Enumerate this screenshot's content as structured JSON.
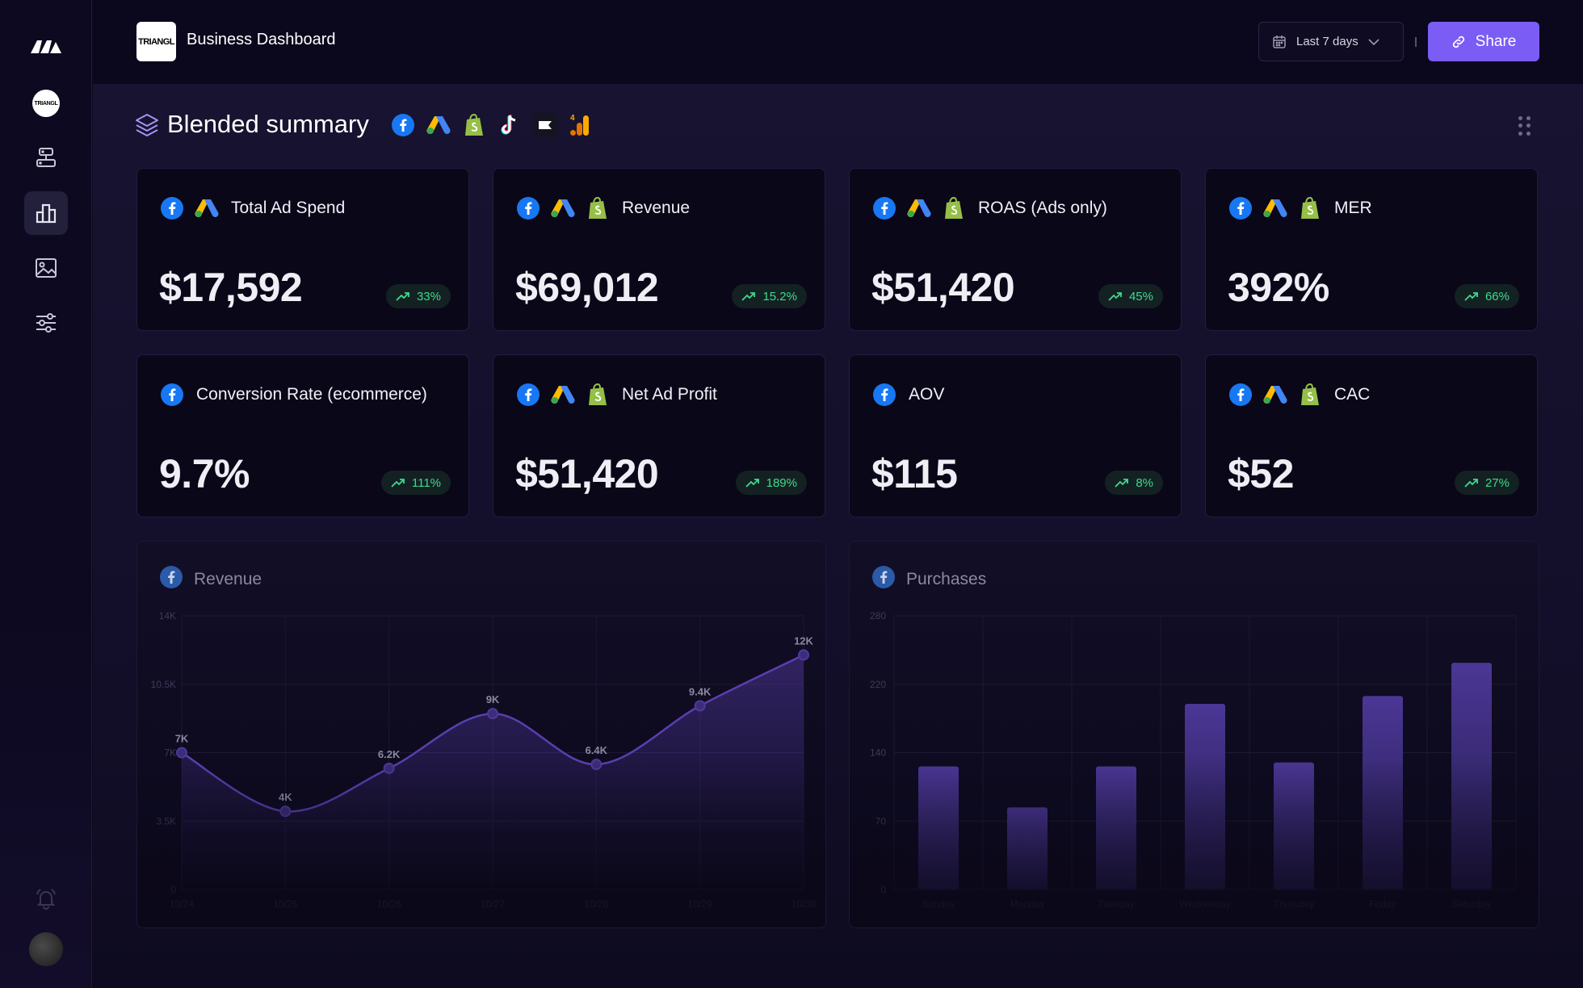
{
  "header": {
    "client_logo_text": "TRIANGL",
    "title": "Business Dashboard",
    "date_range": "Last 7 days",
    "share_label": "Share"
  },
  "sidebar": {
    "items": [
      {
        "icon": "brand-logo-icon"
      },
      {
        "icon": "client-avatar",
        "text": "TRIANGL"
      },
      {
        "icon": "integrations-icon"
      },
      {
        "icon": "bar-chart-icon",
        "active": true
      },
      {
        "icon": "image-icon"
      },
      {
        "icon": "sliders-icon"
      },
      {
        "icon": "bell-icon"
      },
      {
        "icon": "user-avatar"
      }
    ]
  },
  "section": {
    "title": "Blended summary",
    "sources": [
      "facebook-icon",
      "google-ads-icon",
      "shopify-icon",
      "tiktok-icon",
      "klaviyo-icon",
      "google-analytics-icon"
    ]
  },
  "cards": [
    {
      "label": "Total Ad Spend",
      "value": "$17,592",
      "change": "33%",
      "sources": [
        "facebook",
        "google-ads"
      ]
    },
    {
      "label": "Revenue",
      "value": "$69,012",
      "change": "15.2%",
      "sources": [
        "facebook",
        "google-ads",
        "shopify"
      ]
    },
    {
      "label": "ROAS (Ads only)",
      "value": "$51,420",
      "change": "45%",
      "sources": [
        "facebook",
        "google-ads",
        "shopify"
      ]
    },
    {
      "label": "MER",
      "value": "392%",
      "change": "66%",
      "sources": [
        "facebook",
        "google-ads",
        "shopify"
      ]
    },
    {
      "label": "Conversion Rate (ecommerce)",
      "value": "9.7%",
      "change": "111%",
      "sources": [
        "facebook"
      ]
    },
    {
      "label": "Net Ad Profit",
      "value": "$51,420",
      "change": "189%",
      "sources": [
        "facebook",
        "google-ads",
        "shopify"
      ]
    },
    {
      "label": "AOV",
      "value": "$115",
      "change": "8%",
      "sources": [
        "facebook"
      ]
    },
    {
      "label": "CAC",
      "value": "$52",
      "change": "27%",
      "sources": [
        "facebook",
        "google-ads",
        "shopify"
      ]
    }
  ],
  "colors": {
    "accent": "#7b5cf5",
    "positive": "#3ddc8c",
    "line": "#5a3fb0",
    "bar": "#4a3594"
  },
  "chart_data": [
    {
      "type": "line",
      "title": "Revenue",
      "x": [
        "10/24",
        "10/25",
        "10/26",
        "10/27",
        "10/28",
        "10/29",
        "10/30"
      ],
      "series": [
        {
          "values": [
            7000,
            4000,
            6200,
            9000,
            6400,
            9400,
            12000
          ]
        }
      ],
      "data_labels": [
        "7K",
        "4K",
        "6.2K",
        "9K",
        "6.4K",
        "9.4K",
        "12K"
      ],
      "yticks": [
        "0",
        "3.5K",
        "7K",
        "10.5K",
        "14K"
      ],
      "ylim": [
        0,
        14000
      ],
      "grid": true
    },
    {
      "type": "bar",
      "title": "Purchases",
      "categories": [
        "Sunday",
        "Monday",
        "Tuesday",
        "Wednesday",
        "Thursday",
        "Friday",
        "Saturday"
      ],
      "values": [
        126,
        84,
        126,
        190,
        130,
        198,
        232
      ],
      "yticks": [
        "0",
        "70",
        "140",
        "220",
        "280"
      ],
      "ylim": [
        0,
        280
      ],
      "grid": true
    }
  ]
}
